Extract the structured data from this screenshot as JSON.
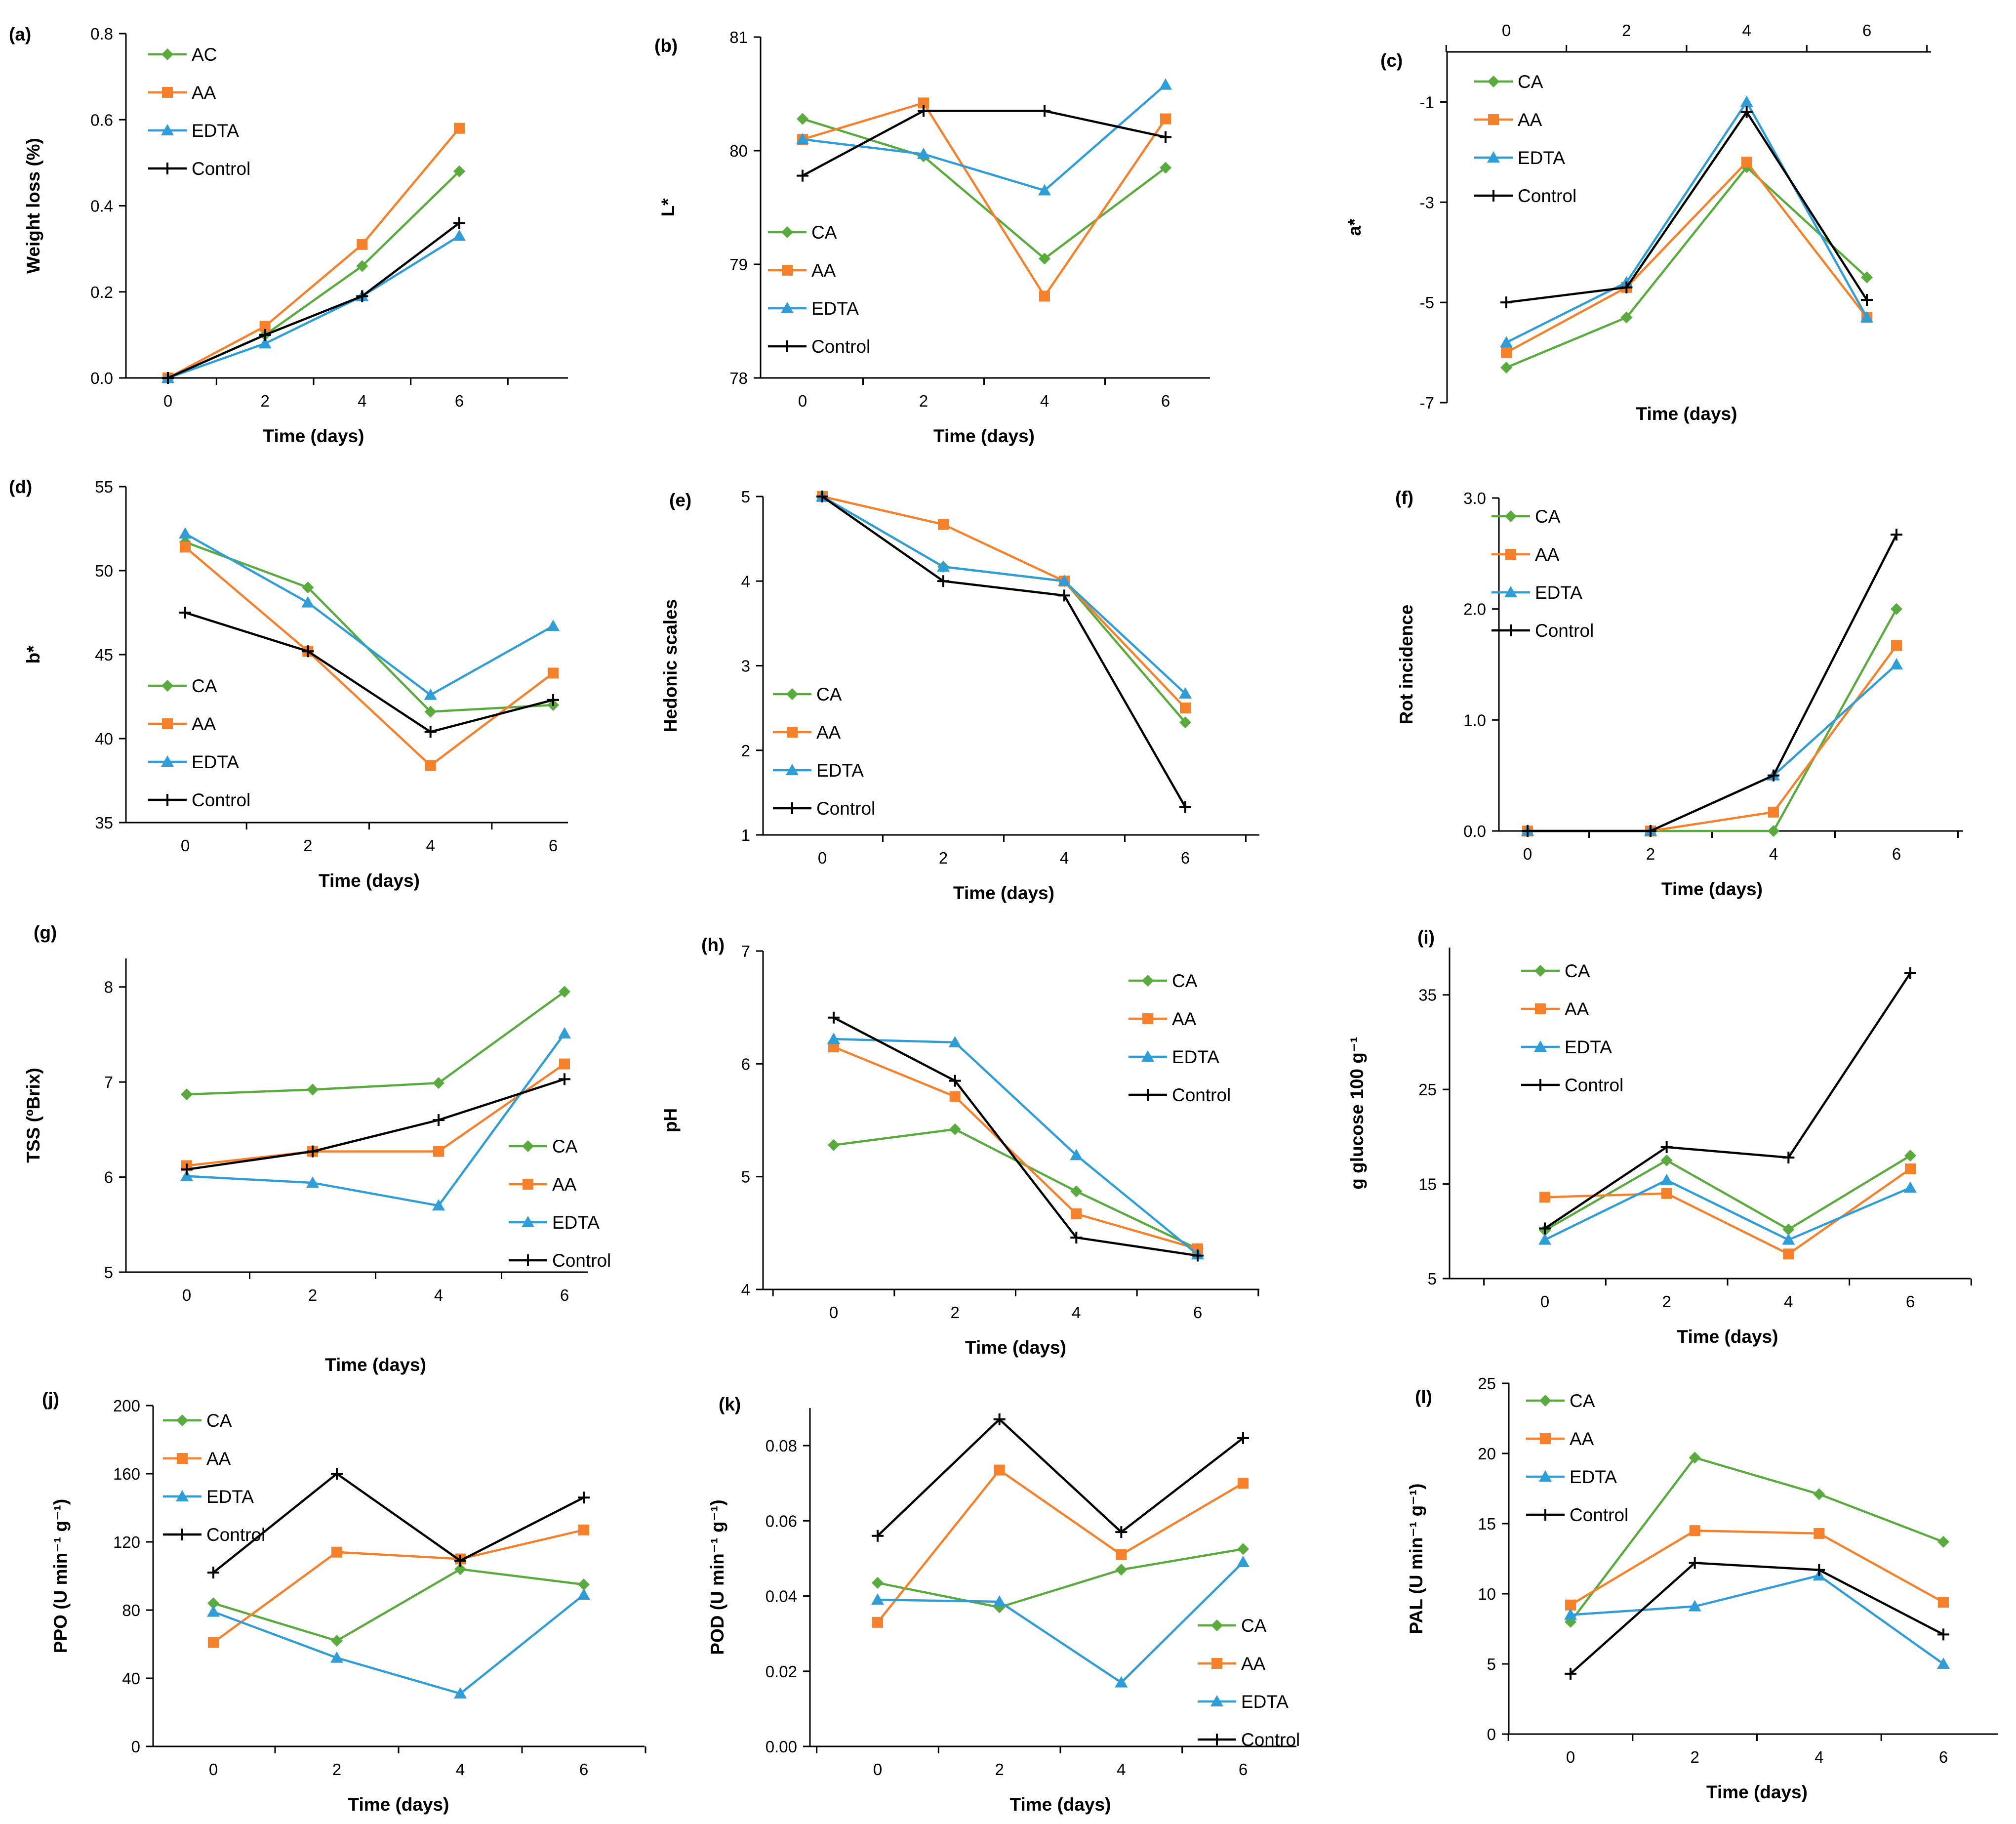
{
  "series_colors": {
    "CA": "#58ab3c",
    "AC": "#58ab3c",
    "AA": "#f7812a",
    "EDTA": "#2f9ed8",
    "Control": "#000000"
  },
  "chart_data": [
    {
      "type": "line",
      "panel": "(a)",
      "xlabel": "Time (days)",
      "ylabel": "Weight loss (%)",
      "x": [
        0,
        2,
        4,
        6
      ],
      "ylim": [
        0,
        0.8
      ],
      "yticks": [
        "0.0",
        "0.2",
        "0.4",
        "0.6",
        "0.8"
      ],
      "series": [
        {
          "name": "AC",
          "values": [
            0.0,
            0.1,
            0.26,
            0.48
          ]
        },
        {
          "name": "AA",
          "values": [
            0.0,
            0.12,
            0.31,
            0.58
          ]
        },
        {
          "name": "EDTA",
          "values": [
            0.0,
            0.08,
            0.19,
            0.33
          ]
        },
        {
          "name": "Control",
          "values": [
            0.0,
            0.1,
            0.19,
            0.36
          ]
        }
      ]
    },
    {
      "type": "line",
      "panel": "(b)",
      "xlabel": "Time (days)",
      "ylabel": "L*",
      "x": [
        0,
        2,
        4,
        6
      ],
      "ylim": [
        78,
        81
      ],
      "yticks": [
        "78",
        "79",
        "80",
        "81"
      ],
      "series": [
        {
          "name": "CA",
          "values": [
            80.28,
            79.95,
            79.05,
            79.85
          ]
        },
        {
          "name": "AA",
          "values": [
            80.1,
            80.42,
            78.72,
            80.28
          ]
        },
        {
          "name": "EDTA",
          "values": [
            80.1,
            79.97,
            79.65,
            80.58
          ]
        },
        {
          "name": "Control",
          "values": [
            79.78,
            80.35,
            80.35,
            80.12
          ]
        }
      ]
    },
    {
      "type": "line",
      "panel": "(c)",
      "xlabel": "Time (days)",
      "ylabel": "a*",
      "x": [
        0,
        2,
        4,
        6
      ],
      "ylim": [
        -7,
        0
      ],
      "yticks": [
        "-1",
        "-3",
        "-5",
        "-7"
      ],
      "series": [
        {
          "name": "CA",
          "values": [
            -6.3,
            -5.3,
            -2.3,
            -4.5
          ]
        },
        {
          "name": "AA",
          "values": [
            -6.0,
            -4.7,
            -2.2,
            -5.3
          ]
        },
        {
          "name": "EDTA",
          "values": [
            -5.8,
            -4.6,
            -1.0,
            -5.3
          ]
        },
        {
          "name": "Control",
          "values": [
            -5.0,
            -4.7,
            -1.2,
            -4.95
          ]
        }
      ]
    },
    {
      "type": "line",
      "panel": "(d)",
      "xlabel": "Time (days)",
      "ylabel": "b*",
      "x": [
        0,
        2,
        4,
        6
      ],
      "ylim": [
        35,
        55
      ],
      "yticks": [
        "35",
        "40",
        "45",
        "50",
        "55"
      ],
      "series": [
        {
          "name": "CA",
          "values": [
            51.7,
            49.0,
            41.6,
            42.0
          ]
        },
        {
          "name": "AA",
          "values": [
            51.4,
            45.2,
            38.4,
            43.9
          ]
        },
        {
          "name": "EDTA",
          "values": [
            52.2,
            48.1,
            42.6,
            46.7
          ]
        },
        {
          "name": "Control",
          "values": [
            47.5,
            45.2,
            40.4,
            42.3
          ]
        }
      ]
    },
    {
      "type": "line",
      "panel": "(e)",
      "xlabel": "Time (days)",
      "ylabel": "Hedonic scales",
      "x": [
        0,
        2,
        4,
        6
      ],
      "ylim": [
        1,
        5
      ],
      "yticks": [
        "1",
        "2",
        "3",
        "4",
        "5"
      ],
      "series": [
        {
          "name": "CA",
          "values": [
            5.0,
            4.17,
            4.0,
            2.33
          ]
        },
        {
          "name": "AA",
          "values": [
            5.0,
            4.67,
            4.0,
            2.5
          ]
        },
        {
          "name": "EDTA",
          "values": [
            5.0,
            4.17,
            4.0,
            2.67
          ]
        },
        {
          "name": "Control",
          "values": [
            5.0,
            4.0,
            3.83,
            1.33
          ]
        }
      ]
    },
    {
      "type": "line",
      "panel": "(f)",
      "xlabel": "Time (days)",
      "ylabel": "Rot incidence",
      "x": [
        0,
        2,
        4,
        6
      ],
      "ylim": [
        0,
        3
      ],
      "yticks": [
        "0.0",
        "1.0",
        "2.0",
        "3.0"
      ],
      "series": [
        {
          "name": "CA",
          "values": [
            0,
            0,
            0,
            2.0
          ]
        },
        {
          "name": "AA",
          "values": [
            0,
            0,
            0.17,
            1.67
          ]
        },
        {
          "name": "EDTA",
          "values": [
            0,
            0,
            0.5,
            1.5
          ]
        },
        {
          "name": "Control",
          "values": [
            0,
            0,
            0.5,
            2.67
          ]
        }
      ]
    },
    {
      "type": "line",
      "panel": "(g)",
      "xlabel": "Time (days)",
      "ylabel": "TSS (ºBrix)",
      "x": [
        0,
        2,
        4,
        6
      ],
      "ylim": [
        5,
        8.3
      ],
      "yticks": [
        "5",
        "6",
        "7",
        "8"
      ],
      "series": [
        {
          "name": "CA",
          "values": [
            6.87,
            6.92,
            6.99,
            7.95
          ]
        },
        {
          "name": "AA",
          "values": [
            6.12,
            6.27,
            6.27,
            7.19
          ]
        },
        {
          "name": "EDTA",
          "values": [
            6.01,
            5.94,
            5.7,
            7.51
          ]
        },
        {
          "name": "Control",
          "values": [
            6.08,
            6.27,
            6.6,
            7.03
          ]
        }
      ]
    },
    {
      "type": "line",
      "panel": "(h)",
      "xlabel": "Time (days)",
      "ylabel": "pH",
      "x": [
        0,
        2,
        4,
        6
      ],
      "ylim": [
        4,
        7
      ],
      "yticks": [
        "4",
        "5",
        "6",
        "7"
      ],
      "series": [
        {
          "name": "CA",
          "values": [
            5.28,
            5.42,
            4.87,
            4.36
          ]
        },
        {
          "name": "AA",
          "values": [
            6.15,
            5.71,
            4.67,
            4.36
          ]
        },
        {
          "name": "EDTA",
          "values": [
            6.22,
            6.19,
            5.19,
            4.31
          ]
        },
        {
          "name": "Control",
          "values": [
            6.41,
            5.85,
            4.46,
            4.3
          ]
        }
      ]
    },
    {
      "type": "line",
      "panel": "(i)",
      "xlabel": "Time (days)",
      "ylabel": "g glucose 100 g⁻¹",
      "x": [
        0,
        2,
        4,
        6
      ],
      "ylim": [
        5,
        40
      ],
      "yticks": [
        "5",
        "15",
        "25",
        "35"
      ],
      "series": [
        {
          "name": "CA",
          "values": [
            10.1,
            17.5,
            10.2,
            18.0
          ]
        },
        {
          "name": "AA",
          "values": [
            13.6,
            14.0,
            7.6,
            16.6
          ]
        },
        {
          "name": "EDTA",
          "values": [
            9.1,
            15.4,
            9.1,
            14.6
          ]
        },
        {
          "name": "Control",
          "values": [
            10.3,
            18.9,
            17.8,
            37.3
          ]
        }
      ]
    },
    {
      "type": "line",
      "panel": "(j)",
      "xlabel": "Time (days)",
      "ylabel": "PPO (U min⁻¹ g⁻¹)",
      "x": [
        0,
        2,
        4,
        6
      ],
      "ylim": [
        0,
        200
      ],
      "yticks": [
        "0",
        "40",
        "80",
        "120",
        "160",
        "200"
      ],
      "series": [
        {
          "name": "CA",
          "values": [
            84,
            62,
            104,
            95
          ]
        },
        {
          "name": "AA",
          "values": [
            61,
            114,
            110,
            127
          ]
        },
        {
          "name": "EDTA",
          "values": [
            79,
            52,
            31,
            89
          ]
        },
        {
          "name": "Control",
          "values": [
            102,
            160,
            109,
            146
          ]
        }
      ]
    },
    {
      "type": "line",
      "panel": "(k)",
      "xlabel": "Time (days)",
      "ylabel": "POD (U min⁻¹ g⁻¹)",
      "x": [
        0,
        2,
        4,
        6
      ],
      "ylim": [
        0,
        0.09
      ],
      "yticks": [
        "0.00",
        "0.02",
        "0.04",
        "0.06",
        "0.08"
      ],
      "series": [
        {
          "name": "CA",
          "values": [
            0.0435,
            0.037,
            0.047,
            0.0525
          ]
        },
        {
          "name": "AA",
          "values": [
            0.033,
            0.0735,
            0.051,
            0.07
          ]
        },
        {
          "name": "EDTA",
          "values": [
            0.039,
            0.0385,
            0.017,
            0.049
          ]
        },
        {
          "name": "Control",
          "values": [
            0.056,
            0.087,
            0.057,
            0.082
          ]
        }
      ]
    },
    {
      "type": "line",
      "panel": "(l)",
      "xlabel": "Time (days)",
      "ylabel": "PAL (U min⁻¹ g⁻¹)",
      "x": [
        0,
        2,
        4,
        6
      ],
      "ylim": [
        0,
        25
      ],
      "yticks": [
        "0",
        "5",
        "10",
        "15",
        "20",
        "25"
      ],
      "series": [
        {
          "name": "CA",
          "values": [
            8.0,
            19.7,
            17.1,
            13.7
          ]
        },
        {
          "name": "AA",
          "values": [
            9.2,
            14.5,
            14.3,
            9.4
          ]
        },
        {
          "name": "EDTA",
          "values": [
            8.5,
            9.1,
            11.3,
            5.0
          ]
        },
        {
          "name": "Control",
          "values": [
            4.3,
            12.2,
            11.7,
            7.1
          ]
        }
      ]
    }
  ]
}
